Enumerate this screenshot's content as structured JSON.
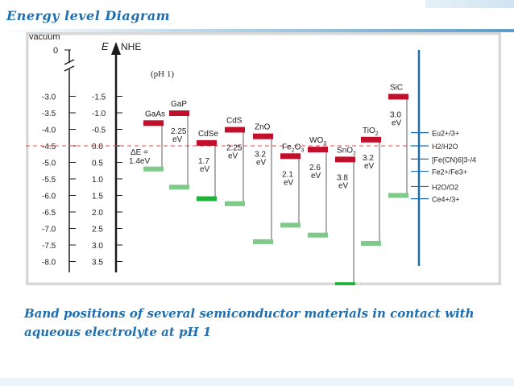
{
  "slide": {
    "title": "Energy level Diagram",
    "caption": "Band positions of several semiconductor materials in contact with aqueous electrolyte at pH 1"
  },
  "diagram": {
    "vacuum_label": "vacuum",
    "vacuum_zero": "0",
    "e_label": "E",
    "nhe_label": "NHE",
    "ph_note": "(pH  1)",
    "left_scale": [
      "-3.0",
      "-3.5",
      "-4.0",
      "-4.5",
      "-5.0",
      "-5.5",
      "-6.0",
      "-6.5",
      "-7.0",
      "-7.5",
      "-8.0"
    ],
    "nhe_scale": [
      "-1.5",
      "-1.0",
      "-0.5",
      "0.0",
      "0.5",
      "1.0",
      "1.5",
      "2.0",
      "2.5",
      "3.0",
      "3.5"
    ],
    "delta_e": {
      "line1": "ΔE =",
      "line2": "1.4eV"
    },
    "materials": [
      {
        "name": "GaAs",
        "gap": [
          "",
          ""
        ],
        "cb": -0.7,
        "vb": 0.7,
        "vb_color": "light"
      },
      {
        "name": "GaP",
        "gap": [
          "2.25",
          "eV"
        ],
        "cb": -1.0,
        "vb": 1.25,
        "vb_color": "light"
      },
      {
        "name": "CdSe",
        "gap": [
          "1.7",
          "eV"
        ],
        "cb": -0.1,
        "vb": 1.6,
        "vb_color": "bright"
      },
      {
        "name": "CdS",
        "gap": [
          "2.25",
          "eV"
        ],
        "cb": -0.5,
        "vb": 1.75,
        "vb_color": "light"
      },
      {
        "name": "ZnO",
        "gap": [
          "3.2",
          "eV"
        ],
        "cb": -0.3,
        "vb": 2.9,
        "vb_color": "light"
      },
      {
        "name": "Fe2O3",
        "sub": "2",
        "sub2": "3",
        "gap": [
          "2.1",
          "eV"
        ],
        "cb": 0.3,
        "vb": 2.4,
        "vb_color": "light"
      },
      {
        "name": "WO3",
        "sub": "3",
        "gap": [
          "2.6",
          "eV"
        ],
        "cb": 0.1,
        "vb": 2.7,
        "vb_color": "light"
      },
      {
        "name": "SnO2",
        "sub": "2",
        "gap": [
          "3.8",
          "eV"
        ],
        "cb": 0.4,
        "vb": 4.2,
        "vb_color": "bright"
      },
      {
        "name": "TiO2",
        "sub": "2",
        "gap": [
          "3.2",
          "eV"
        ],
        "cb": -0.2,
        "vb": 2.95,
        "vb_color": "light"
      },
      {
        "name": "SiC",
        "gap": [
          "3.0",
          "eV"
        ],
        "cb": -1.5,
        "vb": 1.5,
        "vb_color": "light"
      }
    ],
    "redox": [
      {
        "label": "Eu2+/3+",
        "value": -0.4
      },
      {
        "label": "H2/H2O",
        "value": 0.0
      },
      {
        "label": "[Fe(CN)6]3-/4",
        "value": 0.4
      },
      {
        "label": "Fe2+/Fe3+",
        "value": 0.77
      },
      {
        "label": "H2O/O2",
        "value": 1.23
      },
      {
        "label": "Ce4+/3+",
        "value": 1.6
      }
    ],
    "colors": {
      "cb": "#c0102c",
      "vb_light": "#7fc98a",
      "vb_bright": "#1fb33a",
      "redox_line": "#1f6fb0",
      "reference": "#e05050",
      "axis": "#1a1a1a",
      "box_border": "#d8d8d8"
    }
  }
}
